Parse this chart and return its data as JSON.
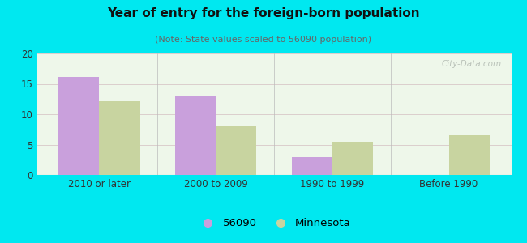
{
  "title": "Year of entry for the foreign-born population",
  "subtitle": "(Note: State values scaled to 56090 population)",
  "categories": [
    "2010 or later",
    "2000 to 2009",
    "1990 to 1999",
    "Before 1990"
  ],
  "values_56090": [
    16.2,
    13.0,
    3.0,
    0.0
  ],
  "values_minnesota": [
    12.1,
    8.1,
    5.5,
    6.5
  ],
  "bar_color_56090": "#c9a0dc",
  "bar_color_minnesota": "#c8d4a0",
  "background_outer": "#00e8f0",
  "background_inner_topleft": "#e8f5e0",
  "background_inner_topright": "#f8fef8",
  "ylim": [
    0,
    20
  ],
  "yticks": [
    0,
    5,
    10,
    15,
    20
  ],
  "legend_label_56090": "56090",
  "legend_label_minnesota": "Minnesota",
  "bar_width": 0.35,
  "title_fontsize": 11,
  "subtitle_fontsize": 8,
  "tick_fontsize": 8.5,
  "legend_fontsize": 9.5
}
